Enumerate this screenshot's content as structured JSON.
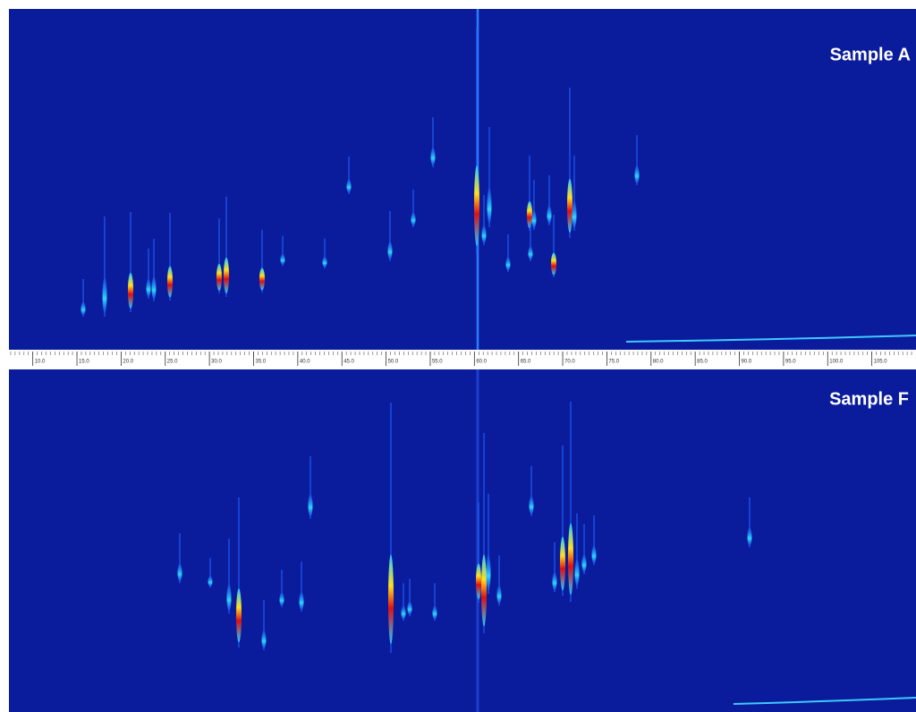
{
  "panels": [
    {
      "label": "Sample A"
    },
    {
      "label": "Sample F"
    }
  ],
  "axis": {
    "xlim": [
      7.3,
      110
    ],
    "xticks": [
      {
        "value": 10,
        "label": "10.0"
      },
      {
        "value": 15,
        "label": "15.0"
      },
      {
        "value": 20,
        "label": "20.0"
      },
      {
        "value": 25,
        "label": "25.0"
      },
      {
        "value": 30,
        "label": "30.0"
      },
      {
        "value": 35,
        "label": "35.0"
      },
      {
        "value": 40,
        "label": "40.0"
      },
      {
        "value": 45,
        "label": "45.0"
      },
      {
        "value": 50,
        "label": "50.0"
      },
      {
        "value": 55,
        "label": "55.0"
      },
      {
        "value": 60,
        "label": "60.0"
      },
      {
        "value": 65,
        "label": "65.0"
      },
      {
        "value": 70,
        "label": "70.0"
      },
      {
        "value": 75,
        "label": "75.0"
      },
      {
        "value": 80,
        "label": "80.0"
      },
      {
        "value": 85,
        "label": "85.0"
      },
      {
        "value": 90,
        "label": "90.0"
      },
      {
        "value": 95,
        "label": "95.0"
      },
      {
        "value": 100,
        "label": "100.0"
      },
      {
        "value": 105,
        "label": "105.0"
      }
    ]
  }
}
